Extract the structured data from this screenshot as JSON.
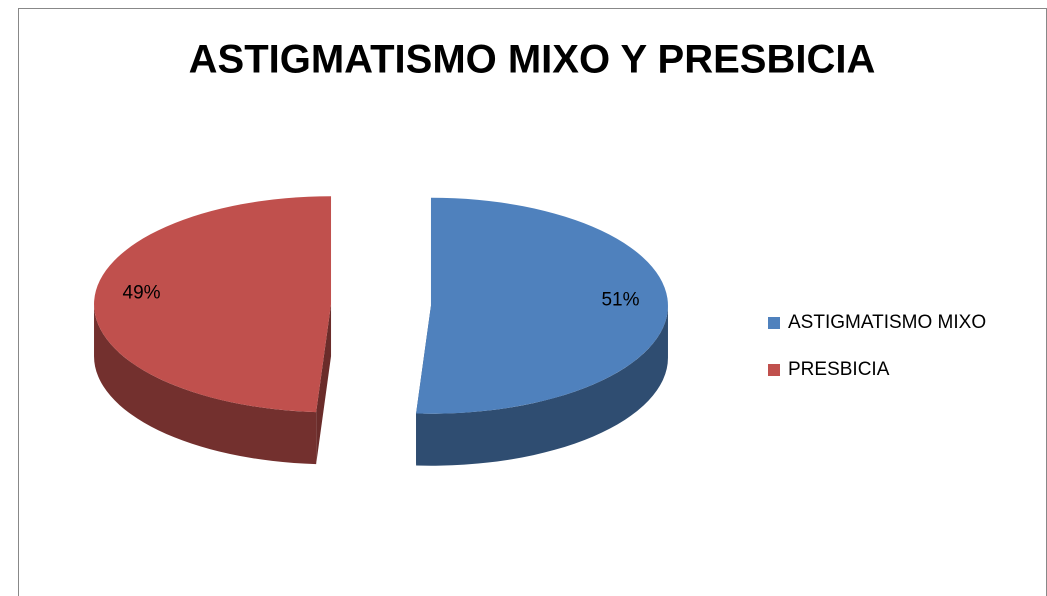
{
  "chart_data": {
    "type": "pie",
    "title": "ASTIGMATISMO MIXO Y PRESBICIA",
    "categories": [
      "ASTIGMATISMO MIXO",
      "PRESBICIA"
    ],
    "values": [
      51,
      49
    ],
    "value_labels": [
      "51%",
      "49%"
    ],
    "colors": [
      "#4f81bd",
      "#c0504d"
    ],
    "legend": "right"
  }
}
